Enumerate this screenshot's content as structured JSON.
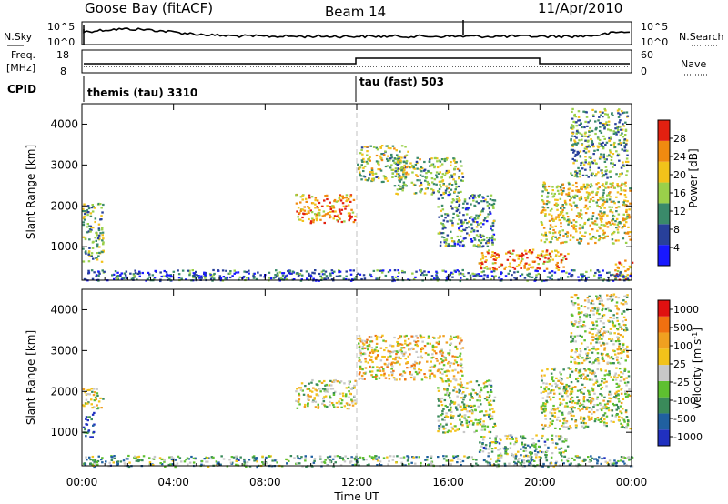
{
  "header": {
    "radar": "Goose Bay (fitACF)",
    "beam": "Beam 14",
    "date": "11/Apr/2010"
  },
  "nsky_panel": {
    "left_label": "N.Sky",
    "right_label": "N.Search",
    "left_ticks": [
      "10^5",
      "10^0"
    ],
    "right_ticks": [
      "10^5",
      "10^0"
    ]
  },
  "freq_panel": {
    "left_label_1": "Freq.",
    "left_label_2": "[MHz]",
    "right_label": "Nave",
    "left_ticks": [
      "18",
      "8"
    ],
    "right_ticks": [
      "60",
      "0"
    ]
  },
  "cpid": {
    "label": "CPID",
    "modes": [
      "themis (tau) 3310",
      "tau (fast) 503"
    ]
  },
  "colors": {
    "power": [
      "#1818ff",
      "#28409a",
      "#3a8a6a",
      "#9ad04a",
      "#f2c21a",
      "#f08a10",
      "#e22010"
    ],
    "velocity": [
      "#2030c0",
      "#2060a0",
      "#3a8a5a",
      "#5ec030",
      "#c8c8c8",
      "#f2c21a",
      "#f0a020",
      "#f07010",
      "#e01010"
    ],
    "grid_line": "#c0c0c0"
  },
  "chart_data": [
    {
      "type": "heatmap",
      "name": "power",
      "ylabel": "Slant Range [km]",
      "ylim": [
        180,
        4500
      ],
      "yticks": [
        "1000",
        "2000",
        "3000",
        "4000"
      ],
      "xlim": [
        0,
        24
      ],
      "xticks": [
        "00:00",
        "04:00",
        "08:00",
        "12:00",
        "16:00",
        "20:00",
        "00:00"
      ],
      "colorbar": {
        "label": "Power [dB]",
        "range": [
          0,
          32
        ],
        "ticks": [
          "4",
          "8",
          "12",
          "16",
          "20",
          "24",
          "28"
        ]
      },
      "echo_regions": [
        {
          "t": [
            0.0,
            0.9
          ],
          "r": [
            600,
            2100
          ],
          "level": 0.45
        },
        {
          "t": [
            9.3,
            11.9
          ],
          "r": [
            1600,
            2300
          ],
          "level": 0.75
        },
        {
          "t": [
            12.0,
            14.2
          ],
          "r": [
            2600,
            3500
          ],
          "level": 0.5
        },
        {
          "t": [
            13.6,
            16.6
          ],
          "r": [
            2300,
            3200
          ],
          "level": 0.5
        },
        {
          "t": [
            15.5,
            18.0
          ],
          "r": [
            1000,
            2300
          ],
          "level": 0.35
        },
        {
          "t": [
            17.3,
            21.2
          ],
          "r": [
            450,
            950
          ],
          "level": 0.75
        },
        {
          "t": [
            20.0,
            23.9
          ],
          "r": [
            1100,
            2600
          ],
          "level": 0.6
        },
        {
          "t": [
            21.3,
            23.8
          ],
          "r": [
            2700,
            4400
          ],
          "level": 0.4
        },
        {
          "t": [
            23.2,
            24.0
          ],
          "r": [
            200,
            700
          ],
          "level": 0.7
        },
        {
          "t": [
            0.0,
            24.0
          ],
          "r": [
            180,
            450
          ],
          "level": 0.25
        }
      ]
    },
    {
      "type": "heatmap",
      "name": "velocity",
      "ylabel": "Slant Range [km]",
      "ylim": [
        180,
        4500
      ],
      "yticks": [
        "1000",
        "2000",
        "3000",
        "4000"
      ],
      "xlim": [
        0,
        24
      ],
      "xticks": [
        "00:00",
        "04:00",
        "08:00",
        "12:00",
        "16:00",
        "20:00",
        "00:00"
      ],
      "xlabel": "Time UT",
      "colorbar": {
        "label": "Velocity [m s^-1]",
        "ticks": [
          "1000",
          "500",
          "100",
          "25",
          "-25",
          "-100",
          "-500",
          "-1000"
        ]
      },
      "echo_regions": [
        {
          "t": [
            0.0,
            0.9
          ],
          "r": [
            1600,
            2100
          ],
          "level": 0.5
        },
        {
          "t": [
            0.0,
            0.5
          ],
          "r": [
            900,
            1500
          ],
          "level": 0.1
        },
        {
          "t": [
            9.3,
            11.9
          ],
          "r": [
            1600,
            2300
          ],
          "level": 0.5
        },
        {
          "t": [
            12.0,
            16.6
          ],
          "r": [
            2300,
            3400
          ],
          "level": 0.6
        },
        {
          "t": [
            15.5,
            18.0
          ],
          "r": [
            1000,
            2300
          ],
          "level": 0.45
        },
        {
          "t": [
            17.3,
            21.2
          ],
          "r": [
            450,
            950
          ],
          "level": 0.35
        },
        {
          "t": [
            20.0,
            23.9
          ],
          "r": [
            1100,
            2600
          ],
          "level": 0.5
        },
        {
          "t": [
            21.3,
            23.8
          ],
          "r": [
            2700,
            4400
          ],
          "level": 0.5
        },
        {
          "t": [
            0.0,
            24.0
          ],
          "r": [
            180,
            450
          ],
          "level": 0.35
        }
      ]
    }
  ]
}
